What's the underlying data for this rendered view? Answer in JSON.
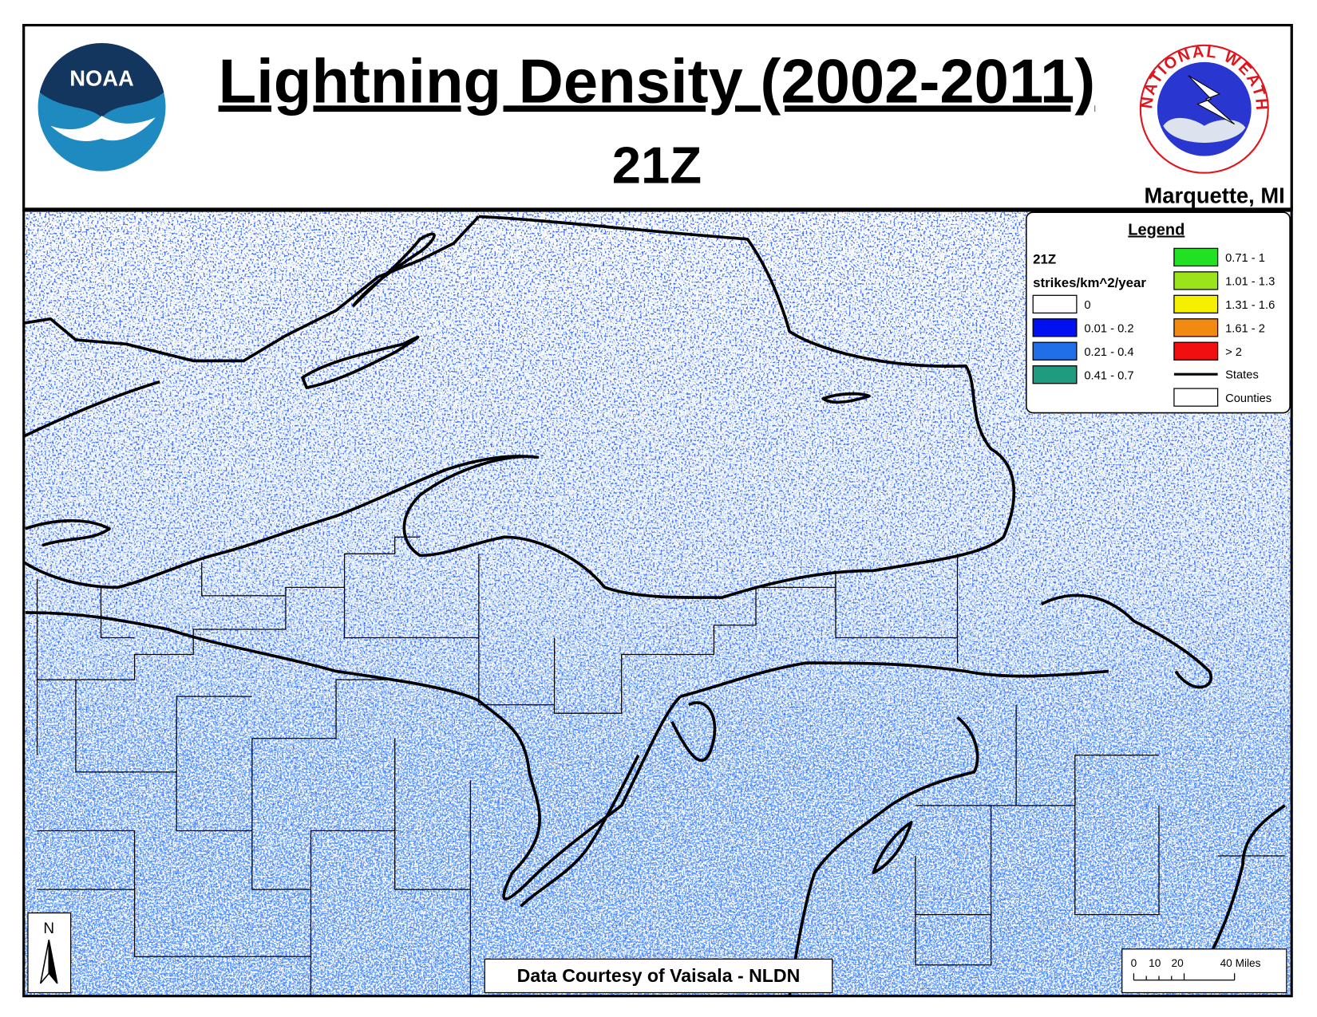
{
  "header": {
    "title": "Lightning Density (2002-2011)",
    "subtitle": "21Z",
    "office": "Marquette, MI"
  },
  "logos": {
    "noaa": "NOAA",
    "nws": "NATIONAL WEATHER SERVICE"
  },
  "legend": {
    "title": "Legend",
    "hour": "21Z",
    "units": "strikes/km^2/year",
    "items": [
      {
        "label": "0",
        "color": "#ffffff"
      },
      {
        "label": "0.01 - 0.2",
        "color": "#0010f0"
      },
      {
        "label": "0.21 - 0.4",
        "color": "#1f6fe8"
      },
      {
        "label": "0.41 - 0.7",
        "color": "#1f9c80"
      },
      {
        "label": "0.71 - 1",
        "color": "#22e022"
      },
      {
        "label": "1.01 - 1.3",
        "color": "#9be41a"
      },
      {
        "label": "1.31 - 1.6",
        "color": "#f5f000"
      },
      {
        "label": "1.61 - 2",
        "color": "#f28a12"
      },
      {
        "label": "> 2",
        "color": "#f01010"
      }
    ],
    "states": "States",
    "counties": "Counties"
  },
  "north": "N",
  "credit": "Data Courtesy of Vaisala - NLDN",
  "scale": {
    "labels": [
      "0",
      "10",
      "20",
      "40 Miles"
    ]
  }
}
